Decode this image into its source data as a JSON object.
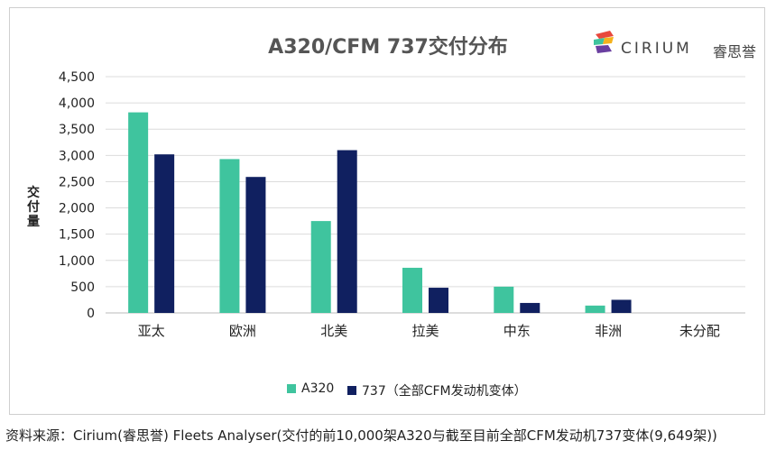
{
  "chart_data": {
    "type": "bar",
    "title": "A320/CFM 737交付分布",
    "ylabel": "交付量",
    "xlabel": "",
    "categories": [
      "亚太",
      "欧洲",
      "北美",
      "拉美",
      "中东",
      "非洲",
      "未分配"
    ],
    "series": [
      {
        "name": "A320",
        "color": "#3fc49e",
        "values": [
          3820,
          2930,
          1750,
          860,
          500,
          140,
          0
        ]
      },
      {
        "name": "737（全部CFM发动机变体）",
        "color": "#102060",
        "values": [
          3020,
          2590,
          3100,
          480,
          190,
          250,
          0
        ]
      }
    ],
    "ylim": [
      0,
      4500
    ],
    "yticks": [
      "0",
      "500",
      "1,000",
      "1,500",
      "2,000",
      "2,500",
      "3,000",
      "3,500",
      "4,000",
      "4,500"
    ],
    "grid": true,
    "legend": "bottom"
  },
  "logo": {
    "text": "CIRIUM",
    "cn": "睿思誉"
  },
  "source": "资料来源：Cirium(睿思誉) Fleets Analyser(交付的前10,000架A320与截至目前全部CFM发动机737变体(9,649架))"
}
